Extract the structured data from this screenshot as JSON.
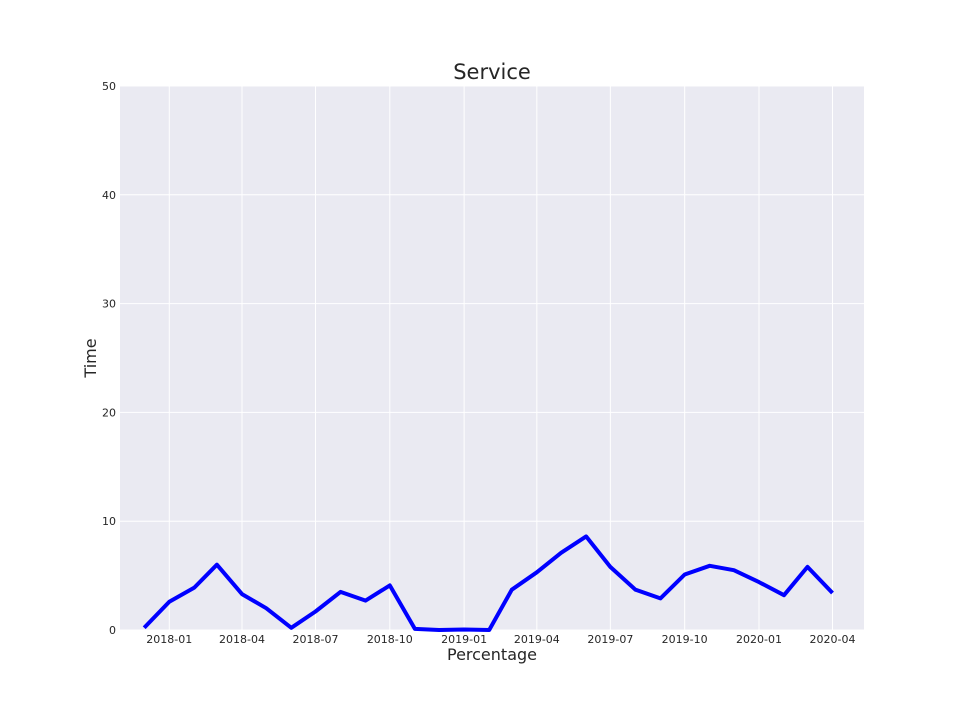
{
  "chart_data": {
    "type": "line",
    "title": "Service",
    "xlabel": "Percentage",
    "ylabel": "Time",
    "ylim": [
      0,
      50
    ],
    "xlim": [
      "2017-11-01",
      "2020-05-10"
    ],
    "grid": true,
    "colors": {
      "plot_background": "#EAEAF2",
      "grid": "#FFFFFF",
      "line": "#0000FF"
    },
    "x_ticks": [
      "2018-01",
      "2018-04",
      "2018-07",
      "2018-10",
      "2019-01",
      "2019-04",
      "2019-07",
      "2019-10",
      "2020-01",
      "2020-04"
    ],
    "y_ticks": [
      0,
      10,
      20,
      30,
      40,
      50
    ],
    "series": [
      {
        "x": [
          "2017-12-01",
          "2018-01-01",
          "2018-02-01",
          "2018-03-01",
          "2018-04-01",
          "2018-05-01",
          "2018-06-01",
          "2018-07-01",
          "2018-08-01",
          "2018-09-01",
          "2018-10-01",
          "2018-11-01",
          "2018-12-01",
          "2019-01-01",
          "2019-02-01",
          "2019-03-01",
          "2019-04-01",
          "2019-05-01",
          "2019-06-01",
          "2019-07-01",
          "2019-08-01",
          "2019-09-01",
          "2019-10-01",
          "2019-11-01",
          "2019-12-01",
          "2020-01-01",
          "2020-02-01",
          "2020-03-01",
          "2020-04-01"
        ],
        "y": [
          0.2,
          2.6,
          3.9,
          6.0,
          3.3,
          2.0,
          0.2,
          1.7,
          3.5,
          2.7,
          4.1,
          0.1,
          0.0,
          0.05,
          0.0,
          3.7,
          5.3,
          7.1,
          8.6,
          5.8,
          3.7,
          2.9,
          5.1,
          5.9,
          5.5,
          4.4,
          3.2,
          5.8,
          3.4
        ]
      }
    ]
  }
}
